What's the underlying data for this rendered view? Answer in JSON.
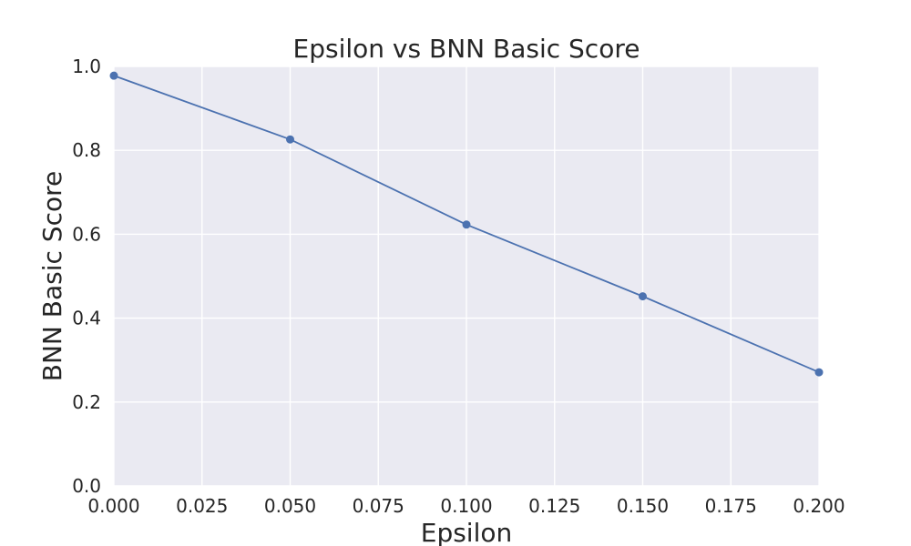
{
  "chart_data": {
    "type": "line",
    "title": "Epsilon vs BNN Basic Score",
    "xlabel": "Epsilon",
    "ylabel": "BNN Basic Score",
    "xlim": [
      0.0,
      0.2
    ],
    "ylim": [
      0.0,
      1.0
    ],
    "x_ticks": [
      "0.000",
      "0.025",
      "0.050",
      "0.075",
      "0.100",
      "0.125",
      "0.150",
      "0.175",
      "0.200"
    ],
    "y_ticks": [
      "0.0",
      "0.2",
      "0.4",
      "0.6",
      "0.8",
      "1.0"
    ],
    "x": [
      0.0,
      0.05,
      0.1,
      0.15,
      0.2
    ],
    "series": [
      {
        "values": [
          0.978,
          0.826,
          0.623,
          0.452,
          0.271
        ],
        "color": "#4c72b0",
        "marker": "circle"
      }
    ],
    "grid": true,
    "background": "#eaeaf2",
    "grid_color": "#ffffff"
  }
}
